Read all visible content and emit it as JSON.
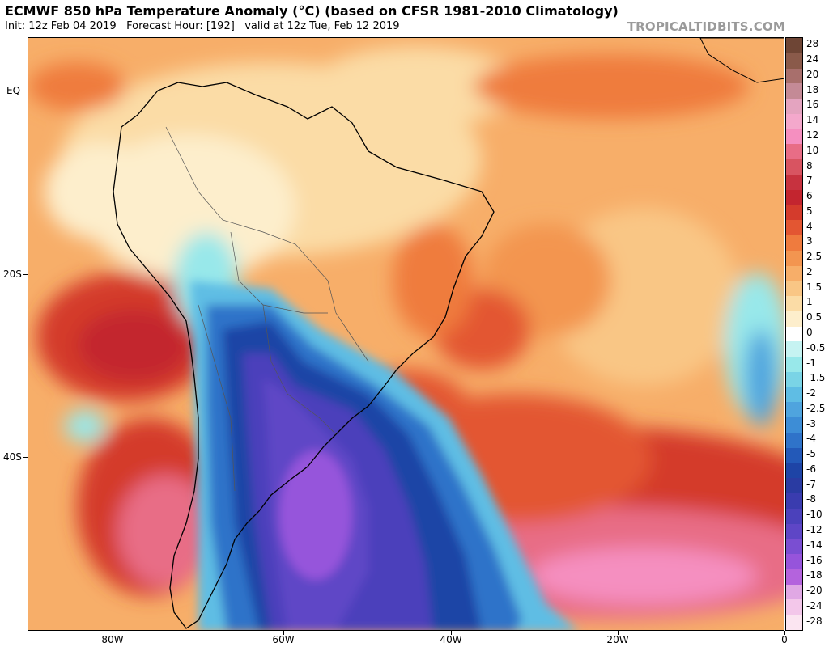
{
  "header": {
    "title": "ECMWF 850 hPa Temperature Anomaly (°C) (based on CFSR 1981-2010 Climatology)",
    "subtitle": "Init: 12z Feb 04 2019   Forecast Hour: [192]   valid at 12z Tue, Feb 12 2019",
    "credit": "TROPICALTIDBITS.COM"
  },
  "map": {
    "lat_labels": [
      "EQ",
      "20S",
      "40S"
    ],
    "lon_labels": [
      "80W",
      "60W",
      "40W",
      "20W",
      "0"
    ]
  },
  "legend": {
    "labels": [
      "28",
      "24",
      "20",
      "18",
      "16",
      "14",
      "12",
      "10",
      "8",
      "7",
      "6",
      "5",
      "4",
      "3",
      "2.5",
      "2",
      "1.5",
      "1",
      "0.5",
      "0",
      "-0.5",
      "-1",
      "-1.5",
      "-2",
      "-2.5",
      "-3",
      "-4",
      "-5",
      "-6",
      "-7",
      "-8",
      "-10",
      "-12",
      "-14",
      "-16",
      "-18",
      "-20",
      "-24",
      "-28"
    ],
    "colors": [
      "#6e4535",
      "#8a5a4a",
      "#a86f6c",
      "#c48a96",
      "#e4a4c0",
      "#f4a8cc",
      "#f58fc0",
      "#e86d86",
      "#d85461",
      "#c7323f",
      "#c3252f",
      "#d43b2c",
      "#e35632",
      "#ef7b3e",
      "#f39550",
      "#f7ae69",
      "#f9c685",
      "#fbdca6",
      "#fdeecc",
      "#ffffff",
      "#c6f3f2",
      "#98e8ea",
      "#7ad4e6",
      "#5fbde4",
      "#4fa4de",
      "#3d8dd6",
      "#2f73c9",
      "#2359b8",
      "#1e44a6",
      "#2a3ba2",
      "#3a3caf",
      "#4b41bb",
      "#5e46c6",
      "#7a4ed2",
      "#9654db",
      "#b463dd",
      "#e0a8e4",
      "#f3c7ea",
      "#fbe5f1"
    ]
  }
}
